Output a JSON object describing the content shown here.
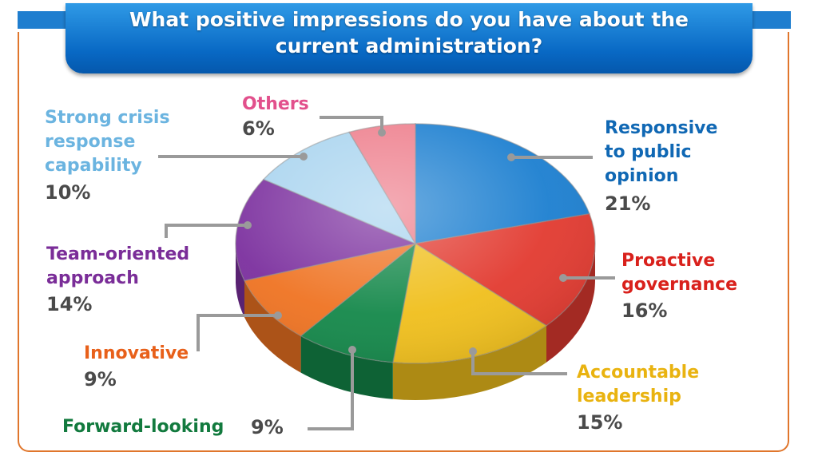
{
  "chart_data": {
    "type": "pie",
    "title": "What positive impressions do you have about the\ncurrent administration?",
    "unit": "%",
    "slices": [
      {
        "label": "Responsive\nto public\nopinion",
        "value": 21,
        "value_label": "21%",
        "color": "#1c7fd0",
        "label_color": "#1068b4"
      },
      {
        "label": "Proactive\ngovernance",
        "value": 16,
        "value_label": "16%",
        "color": "#e23a30",
        "label_color": "#d9211c"
      },
      {
        "label": "Accountable\nleadership",
        "value": 15,
        "value_label": "15%",
        "color": "#f0bf1c",
        "label_color": "#e9b310"
      },
      {
        "label": "Forward-looking",
        "value": 9,
        "value_label": "9%",
        "color": "#14884a",
        "label_color": "#127a3e"
      },
      {
        "label": "Innovative",
        "value": 9,
        "value_label": "9%",
        "color": "#ef7322",
        "label_color": "#e8601a"
      },
      {
        "label": "Team-oriented\napproach",
        "value": 14,
        "value_label": "14%",
        "color": "#7b2f9e",
        "label_color": "#7a2d98"
      },
      {
        "label": "Strong crisis\nresponse\ncapability",
        "value": 10,
        "value_label": "10%",
        "color": "#a9d4ef",
        "label_color": "#6bb4e0"
      },
      {
        "label": "Others",
        "value": 6,
        "value_label": "6%",
        "color": "#ee7e8c",
        "label_color": "#e2508c"
      }
    ]
  }
}
